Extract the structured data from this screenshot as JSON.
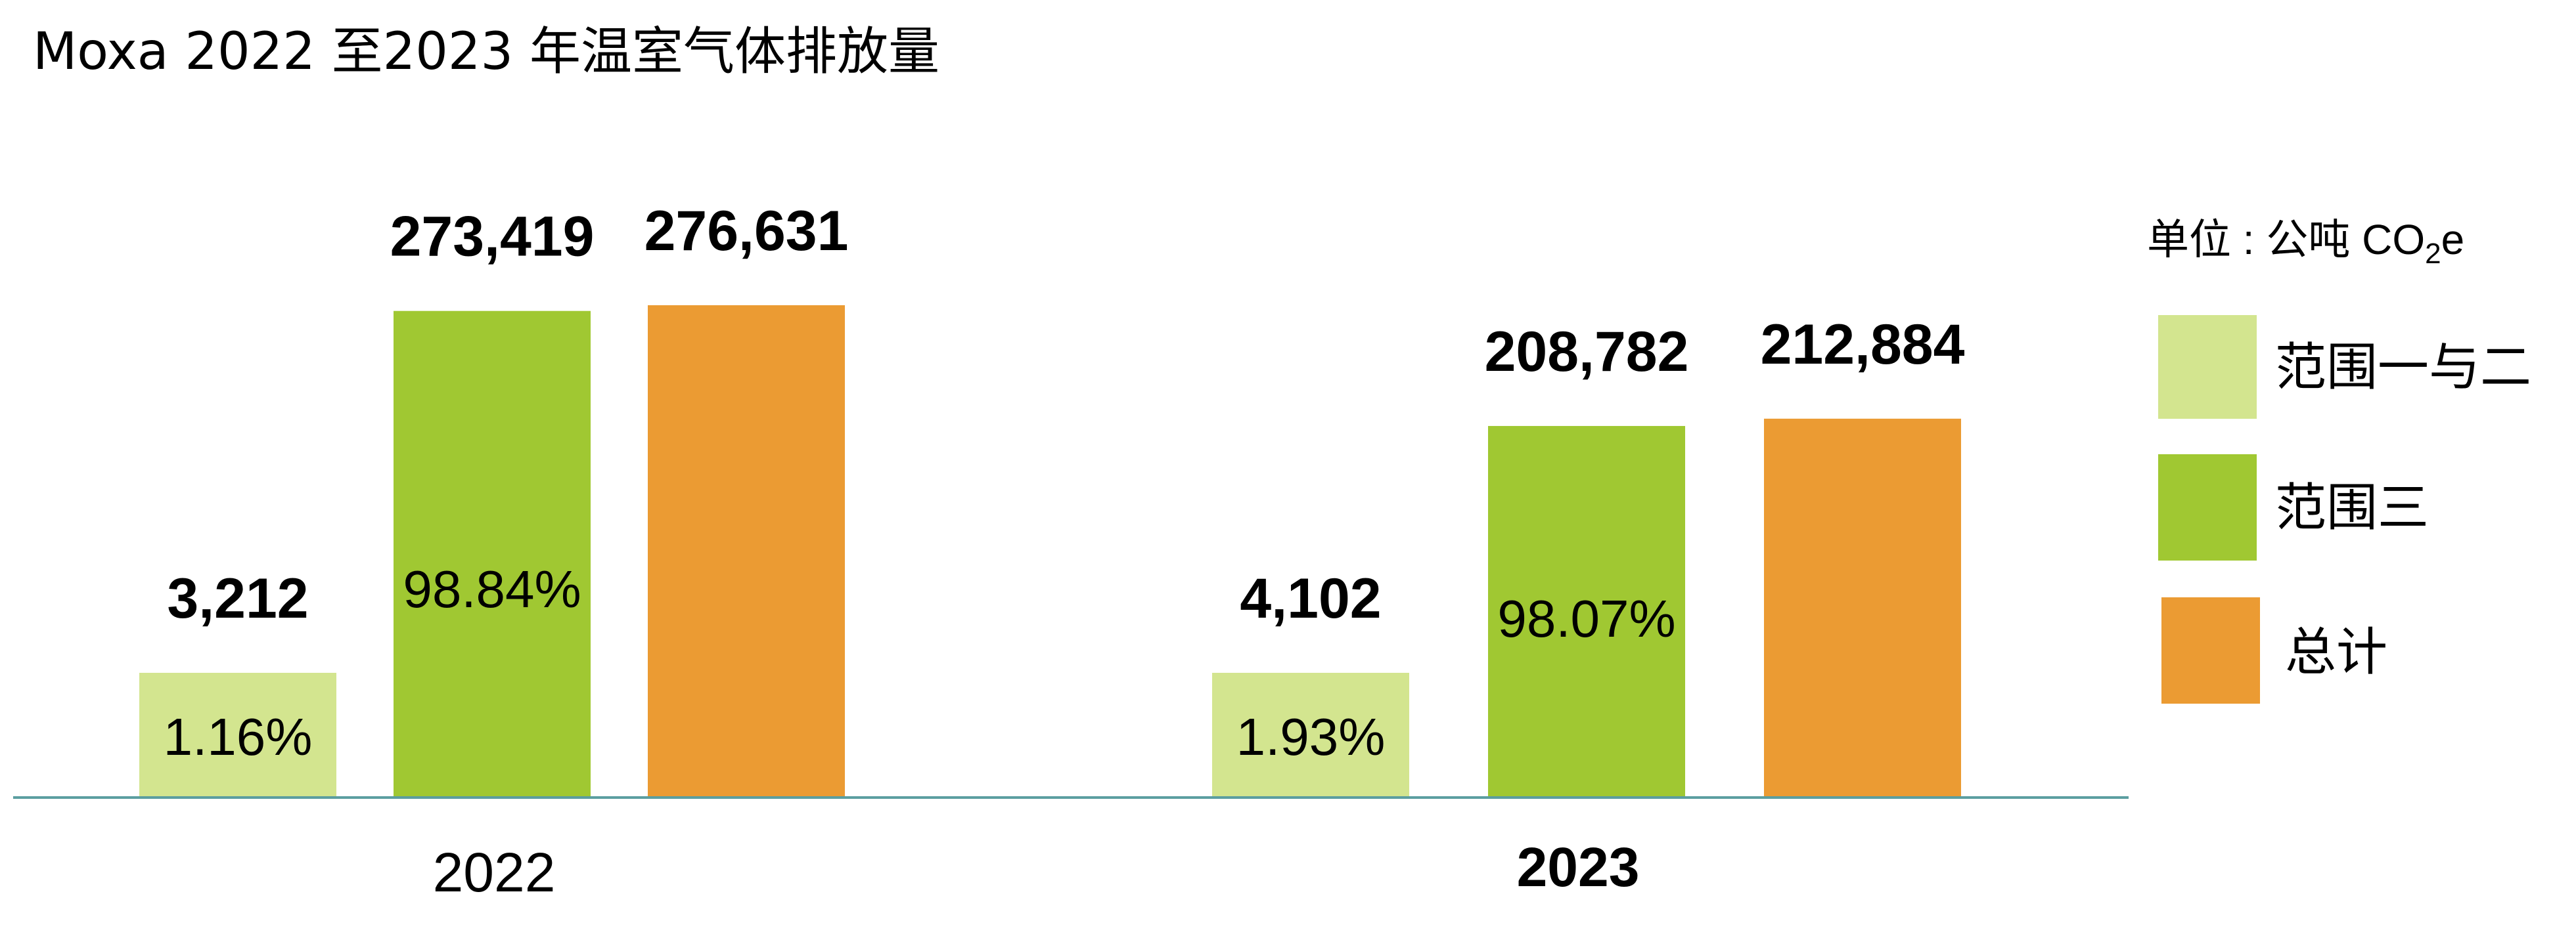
{
  "chart_data": {
    "type": "bar",
    "title": "Moxa 2022 至2023 年温室气体排放量",
    "unit_label": {
      "prefix": "单位 : 公吨 CO",
      "subscript": "2",
      "suffix": "e"
    },
    "categories": [
      "2022",
      "2023"
    ],
    "series": [
      {
        "name": "范围一与二",
        "color": "#d3e58f",
        "values": [
          3212,
          4102
        ],
        "value_labels": [
          "3,212",
          "4,102"
        ],
        "percent_labels": [
          "1.16%",
          "1.93%"
        ]
      },
      {
        "name": "范围三",
        "color": "#a0c832",
        "values": [
          273419,
          208782
        ],
        "value_labels": [
          "273,419",
          "208,782"
        ],
        "percent_labels": [
          "98.84%",
          "98.07%"
        ]
      },
      {
        "name": "总计",
        "color": "#eb9b33",
        "values": [
          276631,
          212884
        ],
        "value_labels": [
          "276,631",
          "212,884"
        ],
        "percent_labels": [
          "",
          ""
        ]
      }
    ],
    "legend_position": "right",
    "grid": false,
    "axis_color": "#5b9ea0"
  }
}
